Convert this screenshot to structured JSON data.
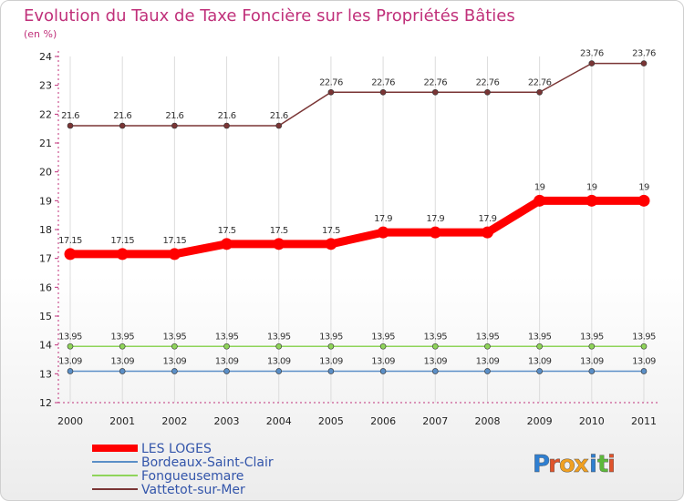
{
  "chart_data": {
    "type": "line",
    "title": "Evolution du Taux de Taxe Foncière sur les Propriétés Bâties",
    "unit_label": "(en %)",
    "xlabel": "",
    "ylabel": "",
    "x": [
      "2000",
      "2001",
      "2002",
      "2003",
      "2004",
      "2005",
      "2006",
      "2007",
      "2008",
      "2009",
      "2010",
      "2011"
    ],
    "ylim": [
      12,
      24
    ],
    "yticks": [
      12,
      13,
      14,
      15,
      16,
      17,
      18,
      19,
      20,
      21,
      22,
      23,
      24
    ],
    "grid": "vertical",
    "legend_position": "bottom-left",
    "series": [
      {
        "name": "LES LOGES",
        "color": "#ff0000",
        "line_style": "thick",
        "values": [
          17.15,
          17.15,
          17.15,
          17.5,
          17.5,
          17.5,
          17.9,
          17.9,
          17.9,
          19,
          19,
          19
        ],
        "labels": [
          "17.15",
          "17.15",
          "17.15",
          "17.5",
          "17.5",
          "17.5",
          "17.9",
          "17.9",
          "17.9",
          "19",
          "19",
          "19"
        ]
      },
      {
        "name": "Bordeaux-Saint-Clair",
        "color": "#5b8fc7",
        "line_style": "thin",
        "values": [
          13.09,
          13.09,
          13.09,
          13.09,
          13.09,
          13.09,
          13.09,
          13.09,
          13.09,
          13.09,
          13.09,
          13.09
        ],
        "labels": [
          "13.09",
          "13.09",
          "13.09",
          "13.09",
          "13.09",
          "13.09",
          "13.09",
          "13.09",
          "13.09",
          "13.09",
          "13.09",
          "13.09"
        ]
      },
      {
        "name": "Fongueusemare",
        "color": "#8fd45a",
        "line_style": "thin",
        "values": [
          13.95,
          13.95,
          13.95,
          13.95,
          13.95,
          13.95,
          13.95,
          13.95,
          13.95,
          13.95,
          13.95,
          13.95
        ],
        "labels": [
          "13.95",
          "13.95",
          "13.95",
          "13.95",
          "13.95",
          "13.95",
          "13.95",
          "13.95",
          "13.95",
          "13.95",
          "13.95",
          "13.95"
        ]
      },
      {
        "name": "Vattetot-sur-Mer",
        "color": "#7a3535",
        "line_style": "thin",
        "values": [
          21.6,
          21.6,
          21.6,
          21.6,
          21.6,
          22.76,
          22.76,
          22.76,
          22.76,
          22.76,
          23.76,
          23.76
        ],
        "labels": [
          "21.6",
          "21.6",
          "21.6",
          "21.6",
          "21.6",
          "22.76",
          "22.76",
          "22.76",
          "22.76",
          "22.76",
          "23.76",
          "23.76"
        ]
      }
    ]
  },
  "logo": {
    "text": "Proxiti"
  }
}
